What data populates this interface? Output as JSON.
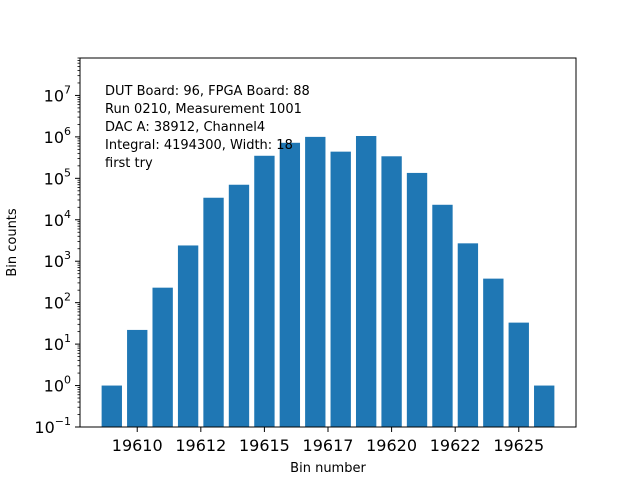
{
  "chart_data": {
    "type": "bar",
    "title": "",
    "xlabel": "Bin number",
    "ylabel": "Bin counts",
    "y_scale": "log",
    "ylim": [
      0.1,
      80000000
    ],
    "grid": false,
    "bar_color": "#1f77b4",
    "x": [
      19609,
      19610,
      19611,
      19612,
      19613,
      19614,
      19615,
      19616,
      19617,
      19618,
      19619,
      19620,
      19621,
      19622,
      19623,
      19624,
      19625,
      19626
    ],
    "values": [
      1,
      22,
      230,
      2400,
      34000,
      70000,
      350000,
      720000,
      1000000,
      440000,
      1050000,
      340000,
      135000,
      23000,
      2700,
      380,
      33,
      1
    ],
    "x_tick_labels": [
      "19610",
      "19612",
      "19615",
      "19617",
      "19620",
      "19622",
      "19625"
    ],
    "y_tick_labels": [
      {
        "base": "10",
        "exp": "−1"
      },
      {
        "base": "10",
        "exp": "0"
      },
      {
        "base": "10",
        "exp": "1"
      },
      {
        "base": "10",
        "exp": "2"
      },
      {
        "base": "10",
        "exp": "3"
      },
      {
        "base": "10",
        "exp": "4"
      },
      {
        "base": "10",
        "exp": "5"
      },
      {
        "base": "10",
        "exp": "6"
      },
      {
        "base": "10",
        "exp": "7"
      }
    ],
    "annotations": [
      "DUT Board: 96, FPGA Board: 88",
      "Run 0210, Measurement 1001",
      "DAC A: 38912, Channel4",
      "Integral: 4194300, Width: 18",
      "first try"
    ]
  }
}
